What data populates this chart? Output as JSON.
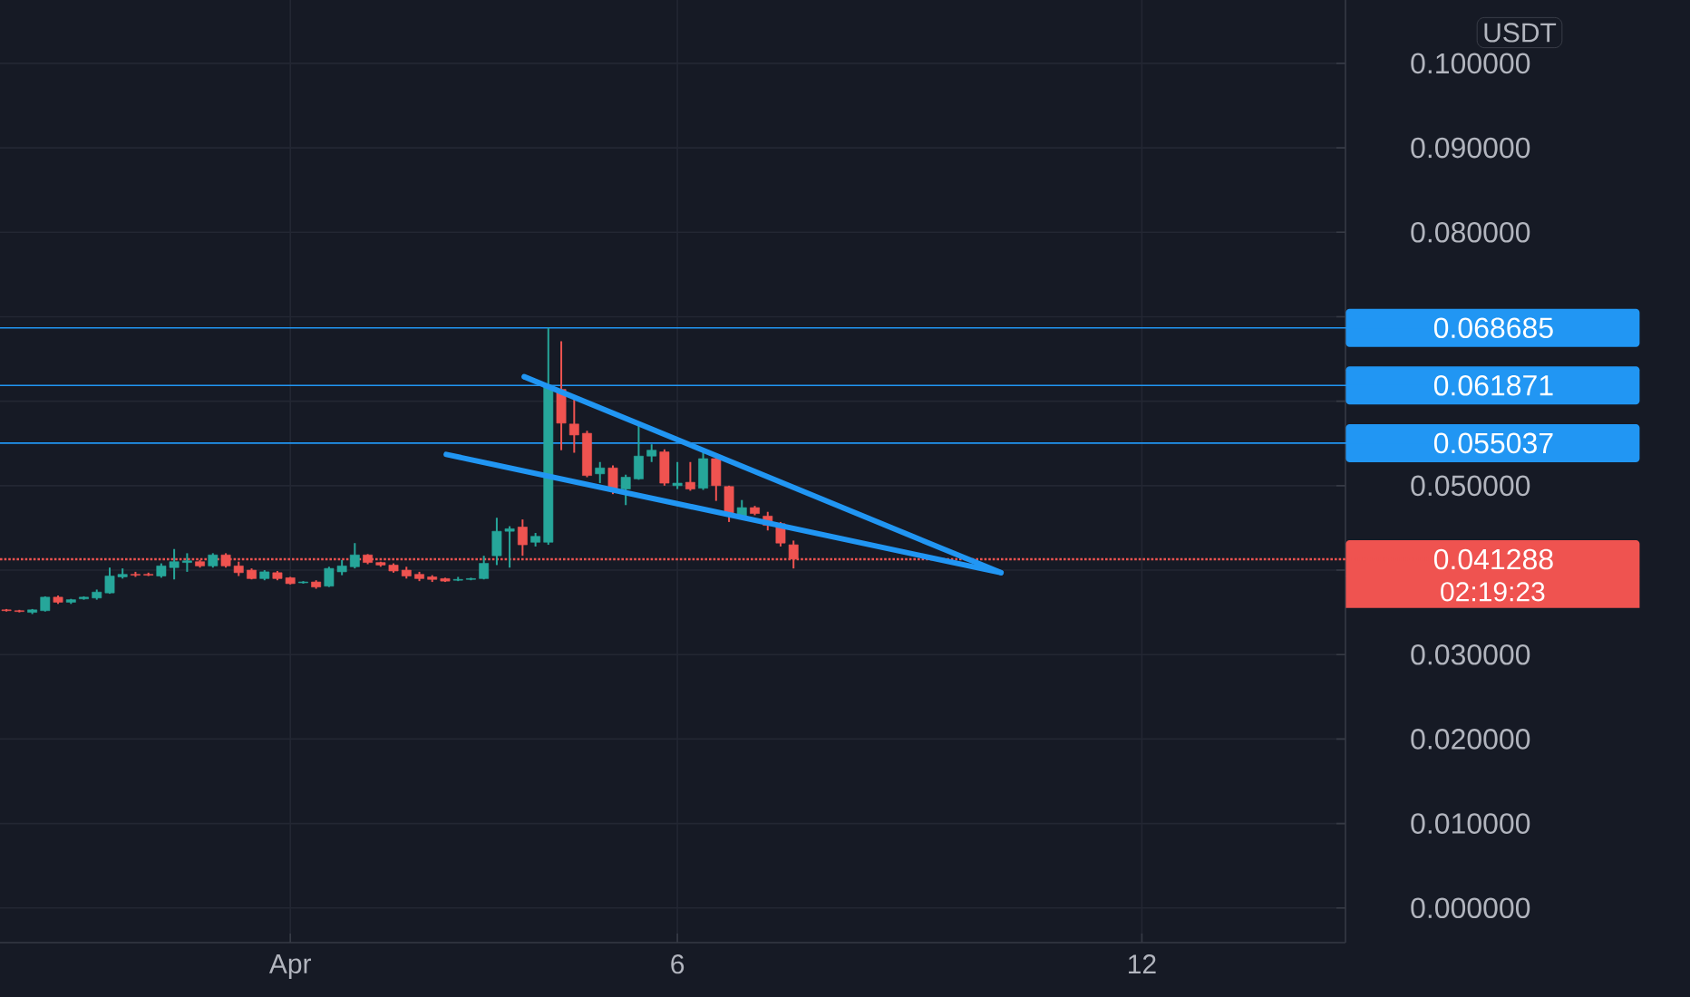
{
  "chart_data": {
    "type": "candlestick",
    "x": [
      -2.667,
      -2.5,
      -2.333,
      -2.167,
      -2,
      -1.833,
      -1.667,
      -1.5,
      -1.333,
      -1.167,
      -1,
      -0.833,
      -0.667,
      -0.5,
      -0.333,
      -0.167,
      0,
      0.167,
      0.333,
      0.5,
      0.667,
      0.833,
      1,
      1.167,
      1.333,
      1.5,
      1.667,
      1.833,
      2,
      2.167,
      2.333,
      2.5,
      2.667,
      2.833,
      3,
      3.167,
      3.333,
      3.5,
      3.667,
      3.833,
      4,
      4.167,
      4.333,
      4.5,
      4.667,
      4.833,
      5,
      5.167,
      5.333,
      5.5,
      5.667,
      5.833,
      6,
      6.167,
      6.333,
      6.5,
      6.667,
      6.833,
      7,
      7.167,
      7.333,
      7.5
    ],
    "ohlc": [
      [
        0.0353,
        0.0354,
        0.0351,
        0.0352
      ],
      [
        0.0352,
        0.0353,
        0.035,
        0.0351
      ],
      [
        0.035,
        0.0354,
        0.0348,
        0.0353
      ],
      [
        0.0352,
        0.0369,
        0.0351,
        0.0368
      ],
      [
        0.0368,
        0.037,
        0.036,
        0.0362
      ],
      [
        0.0362,
        0.0366,
        0.036,
        0.0365
      ],
      [
        0.0366,
        0.0369,
        0.0365,
        0.0368
      ],
      [
        0.0367,
        0.0377,
        0.0365,
        0.0374
      ],
      [
        0.0373,
        0.0403,
        0.0372,
        0.0393
      ],
      [
        0.0392,
        0.0402,
        0.039,
        0.0395
      ],
      [
        0.0395,
        0.0398,
        0.0392,
        0.0394
      ],
      [
        0.0395,
        0.0397,
        0.0393,
        0.0394
      ],
      [
        0.0393,
        0.0408,
        0.0391,
        0.0405
      ],
      [
        0.0403,
        0.0425,
        0.0389,
        0.041
      ],
      [
        0.0409,
        0.042,
        0.0398,
        0.0411
      ],
      [
        0.041,
        0.0412,
        0.0403,
        0.0405
      ],
      [
        0.0405,
        0.042,
        0.0403,
        0.0418
      ],
      [
        0.0418,
        0.042,
        0.0403,
        0.0405
      ],
      [
        0.0405,
        0.041,
        0.0393,
        0.0397
      ],
      [
        0.04,
        0.0402,
        0.0389,
        0.039
      ],
      [
        0.039,
        0.04,
        0.0388,
        0.0398
      ],
      [
        0.0397,
        0.0399,
        0.0388,
        0.039
      ],
      [
        0.0391,
        0.0392,
        0.0383,
        0.0384
      ],
      [
        0.0385,
        0.0387,
        0.0384,
        0.0386
      ],
      [
        0.0386,
        0.0388,
        0.0378,
        0.038
      ],
      [
        0.0381,
        0.0404,
        0.038,
        0.0402
      ],
      [
        0.0398,
        0.0412,
        0.0394,
        0.0405
      ],
      [
        0.0404,
        0.0432,
        0.0402,
        0.0418
      ],
      [
        0.0418,
        0.0419,
        0.0407,
        0.0409
      ],
      [
        0.0409,
        0.041,
        0.0404,
        0.0406
      ],
      [
        0.0406,
        0.0408,
        0.0397,
        0.0399
      ],
      [
        0.04,
        0.0404,
        0.039,
        0.0393
      ],
      [
        0.0395,
        0.0398,
        0.0387,
        0.039
      ],
      [
        0.0392,
        0.0394,
        0.0386,
        0.0389
      ],
      [
        0.039,
        0.0391,
        0.0386,
        0.0387
      ],
      [
        0.0388,
        0.0392,
        0.0387,
        0.0389
      ],
      [
        0.0389,
        0.0391,
        0.0388,
        0.039
      ],
      [
        0.039,
        0.0417,
        0.0389,
        0.0408
      ],
      [
        0.0417,
        0.0462,
        0.0406,
        0.0446
      ],
      [
        0.0446,
        0.0452,
        0.0403,
        0.0449
      ],
      [
        0.0451,
        0.046,
        0.0417,
        0.043
      ],
      [
        0.0433,
        0.0444,
        0.0428,
        0.044
      ],
      [
        0.0433,
        0.0687,
        0.043,
        0.0617
      ],
      [
        0.0614,
        0.0671,
        0.0542,
        0.0574
      ],
      [
        0.0573,
        0.0607,
        0.0539,
        0.056
      ],
      [
        0.0562,
        0.0565,
        0.051,
        0.0512
      ],
      [
        0.0514,
        0.0528,
        0.0503,
        0.0521
      ],
      [
        0.0521,
        0.0524,
        0.049,
        0.0496
      ],
      [
        0.0496,
        0.0513,
        0.0477,
        0.051
      ],
      [
        0.0508,
        0.0575,
        0.0507,
        0.0535
      ],
      [
        0.0535,
        0.0549,
        0.0528,
        0.0542
      ],
      [
        0.054,
        0.0543,
        0.05,
        0.0503
      ],
      [
        0.05,
        0.0528,
        0.0496,
        0.0503
      ],
      [
        0.0504,
        0.0528,
        0.0494,
        0.0496
      ],
      [
        0.0497,
        0.0542,
        0.0495,
        0.0532
      ],
      [
        0.0532,
        0.0535,
        0.0482,
        0.05
      ],
      [
        0.0499,
        0.05,
        0.0457,
        0.0464
      ],
      [
        0.0464,
        0.0483,
        0.046,
        0.0474
      ],
      [
        0.0474,
        0.0476,
        0.0465,
        0.0467
      ],
      [
        0.0464,
        0.0469,
        0.0447,
        0.0453
      ],
      [
        0.0455,
        0.0457,
        0.0428,
        0.0432
      ],
      [
        0.043,
        0.0435,
        0.0402,
        0.0413
      ]
    ],
    "colors": [
      "#ef5350",
      "#ef5350",
      "#26a69a",
      "#26a69a",
      "#ef5350",
      "#26a69a",
      "#26a69a",
      "#26a69a",
      "#26a69a",
      "#26a69a",
      "#ef5350",
      "#ef5350",
      "#26a69a",
      "#26a69a",
      "#26a69a",
      "#ef5350",
      "#26a69a",
      "#ef5350",
      "#ef5350",
      "#ef5350",
      "#26a69a",
      "#ef5350",
      "#ef5350",
      "#26a69a",
      "#ef5350",
      "#26a69a",
      "#26a69a",
      "#26a69a",
      "#ef5350",
      "#ef5350",
      "#ef5350",
      "#ef5350",
      "#ef5350",
      "#ef5350",
      "#ef5350",
      "#26a69a",
      "#26a69a",
      "#26a69a",
      "#26a69a",
      "#26a69a",
      "#ef5350",
      "#26a69a",
      "#26a69a",
      "#ef5350",
      "#ef5350",
      "#ef5350",
      "#26a69a",
      "#ef5350",
      "#26a69a",
      "#26a69a",
      "#26a69a",
      "#ef5350",
      "#26a69a",
      "#ef5350",
      "#26a69a",
      "#ef5350",
      "#ef5350",
      "#26a69a",
      "#ef5350",
      "#ef5350",
      "#ef5350",
      "#ef5350"
    ],
    "series": [
      {
        "type": "line",
        "color": "#2196f3",
        "x": [
          4.021,
          10.18
        ],
        "values": [
          0.0629,
          0.0397
        ]
      },
      {
        "type": "line",
        "color": "#2196f3",
        "x": [
          3.014,
          10.18
        ],
        "values": [
          0.0537,
          0.0397
        ]
      }
    ],
    "ref_lines": [
      {
        "axis": "y",
        "value": 0.068685,
        "label": "0.068685",
        "color": "#2196f3",
        "line_style": "solid"
      },
      {
        "axis": "y",
        "value": 0.061871,
        "label": "0.061871",
        "color": "#2196f3",
        "line_style": "solid"
      },
      {
        "axis": "y",
        "value": 0.055037,
        "label": "0.055037",
        "color": "#2196f3",
        "line_style": "solid"
      },
      {
        "axis": "y",
        "value": 0.041288,
        "label": "0.041288",
        "color": "#ef5350",
        "line_style": "dotted"
      }
    ],
    "annotations": [
      "02:19:23",
      "USDT"
    ],
    "xlim": [
      -2.75,
      14.63
    ],
    "ylim": [
      -0.0041,
      0.1075
    ],
    "xticks": [
      {
        "value": 1,
        "label": "Apr"
      },
      6,
      12
    ],
    "yticks": [
      {
        "value": 0,
        "label": "0.000000"
      },
      {
        "value": 0.01,
        "label": "0.010000"
      },
      {
        "value": 0.02,
        "label": "0.020000"
      },
      {
        "value": 0.03,
        "label": "0.030000"
      },
      {
        "value": 0.04,
        "label": null
      },
      {
        "value": 0.05,
        "label": "0.050000"
      },
      {
        "value": 0.06,
        "label": null
      },
      {
        "value": 0.07,
        "label": null
      },
      {
        "value": 0.08,
        "label": "0.080000"
      },
      {
        "value": 0.09,
        "label": "0.090000"
      },
      {
        "value": 0.1,
        "label": "0.100000"
      }
    ],
    "grid": true
  }
}
